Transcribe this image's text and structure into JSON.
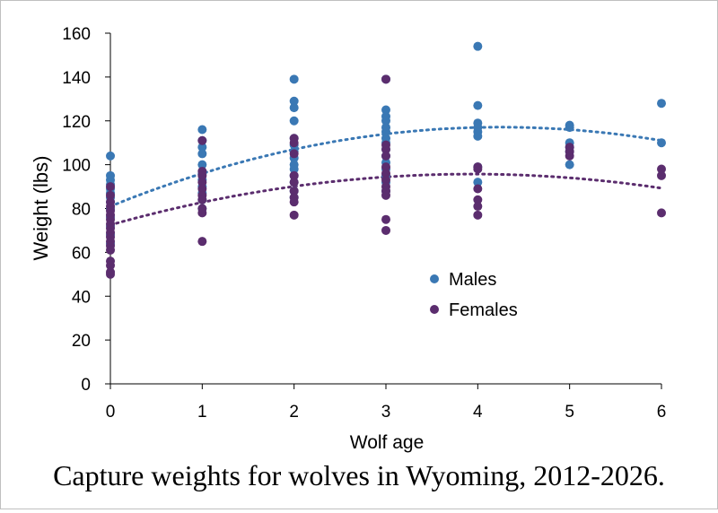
{
  "caption": "Capture weights for wolves in Wyoming, 2012-2026.",
  "chart_data": {
    "type": "scatter",
    "title": "",
    "xlabel": "Wolf age",
    "ylabel": "Weight (lbs)",
    "xlim": [
      0,
      6
    ],
    "ylim": [
      0,
      160
    ],
    "x_ticks": [
      0,
      1,
      2,
      3,
      4,
      5,
      6
    ],
    "y_ticks": [
      0,
      20,
      40,
      60,
      80,
      100,
      120,
      140,
      160
    ],
    "grid": false,
    "legend_position": "center-right",
    "series": [
      {
        "name": "Males",
        "color": "#3a78b4",
        "trendline": "quadratic",
        "trend_coeffs": [
          81,
          17,
          -2
        ],
        "points": [
          [
            0,
            104
          ],
          [
            0,
            95
          ],
          [
            0,
            93
          ],
          [
            0,
            91
          ],
          [
            0,
            89
          ],
          [
            0,
            87
          ],
          [
            0,
            85
          ],
          [
            0,
            83
          ],
          [
            0,
            80
          ],
          [
            0,
            76
          ],
          [
            0,
            72
          ],
          [
            0,
            68
          ],
          [
            0,
            64
          ],
          [
            1,
            116
          ],
          [
            1,
            111
          ],
          [
            1,
            108
          ],
          [
            1,
            105
          ],
          [
            1,
            100
          ],
          [
            1,
            96
          ],
          [
            1,
            93
          ],
          [
            1,
            90
          ],
          [
            1,
            87
          ],
          [
            1,
            84
          ],
          [
            1,
            80
          ],
          [
            2,
            139
          ],
          [
            2,
            129
          ],
          [
            2,
            126
          ],
          [
            2,
            120
          ],
          [
            2,
            112
          ],
          [
            2,
            109
          ],
          [
            2,
            106
          ],
          [
            2,
            103
          ],
          [
            2,
            100
          ],
          [
            2,
            98
          ],
          [
            2,
            95
          ],
          [
            2,
            92
          ],
          [
            2,
            88
          ],
          [
            2,
            85
          ],
          [
            3,
            139
          ],
          [
            3,
            125
          ],
          [
            3,
            122
          ],
          [
            3,
            120
          ],
          [
            3,
            117
          ],
          [
            3,
            115
          ],
          [
            3,
            112
          ],
          [
            3,
            110
          ],
          [
            3,
            107
          ],
          [
            3,
            104
          ],
          [
            3,
            101
          ],
          [
            3,
            98
          ],
          [
            3,
            95
          ],
          [
            3,
            92
          ],
          [
            3,
            88
          ],
          [
            4,
            154
          ],
          [
            4,
            127
          ],
          [
            4,
            119
          ],
          [
            4,
            117
          ],
          [
            4,
            115
          ],
          [
            4,
            113
          ],
          [
            4,
            99
          ],
          [
            4,
            92
          ],
          [
            5,
            118
          ],
          [
            5,
            117
          ],
          [
            5,
            110
          ],
          [
            5,
            108
          ],
          [
            5,
            106
          ],
          [
            5,
            100
          ],
          [
            6,
            128
          ],
          [
            6,
            110
          ]
        ]
      },
      {
        "name": "Females",
        "color": "#5b2d6e",
        "trendline": "quadratic",
        "trend_coeffs": [
          72.5,
          11.8,
          -1.5
        ],
        "points": [
          [
            0,
            90
          ],
          [
            0,
            86
          ],
          [
            0,
            83
          ],
          [
            0,
            81
          ],
          [
            0,
            79
          ],
          [
            0,
            77
          ],
          [
            0,
            75
          ],
          [
            0,
            73
          ],
          [
            0,
            71
          ],
          [
            0,
            69
          ],
          [
            0,
            67
          ],
          [
            0,
            65
          ],
          [
            0,
            63
          ],
          [
            0,
            61
          ],
          [
            0,
            56
          ],
          [
            0,
            54
          ],
          [
            0,
            51
          ],
          [
            0,
            50
          ],
          [
            1,
            111
          ],
          [
            1,
            97
          ],
          [
            1,
            95
          ],
          [
            1,
            92
          ],
          [
            1,
            89
          ],
          [
            1,
            86
          ],
          [
            1,
            84
          ],
          [
            1,
            80
          ],
          [
            1,
            78
          ],
          [
            1,
            65
          ],
          [
            2,
            112
          ],
          [
            2,
            110
          ],
          [
            2,
            105
          ],
          [
            2,
            95
          ],
          [
            2,
            92
          ],
          [
            2,
            88
          ],
          [
            2,
            85
          ],
          [
            2,
            83
          ],
          [
            2,
            77
          ],
          [
            3,
            139
          ],
          [
            3,
            109
          ],
          [
            3,
            107
          ],
          [
            3,
            104
          ],
          [
            3,
            99
          ],
          [
            3,
            96
          ],
          [
            3,
            93
          ],
          [
            3,
            90
          ],
          [
            3,
            88
          ],
          [
            3,
            86
          ],
          [
            3,
            75
          ],
          [
            3,
            70
          ],
          [
            4,
            99
          ],
          [
            4,
            98
          ],
          [
            4,
            89
          ],
          [
            4,
            84
          ],
          [
            4,
            81
          ],
          [
            4,
            77
          ],
          [
            5,
            108
          ],
          [
            5,
            106
          ],
          [
            5,
            104
          ],
          [
            6,
            98
          ],
          [
            6,
            95
          ],
          [
            6,
            78
          ]
        ]
      }
    ]
  }
}
